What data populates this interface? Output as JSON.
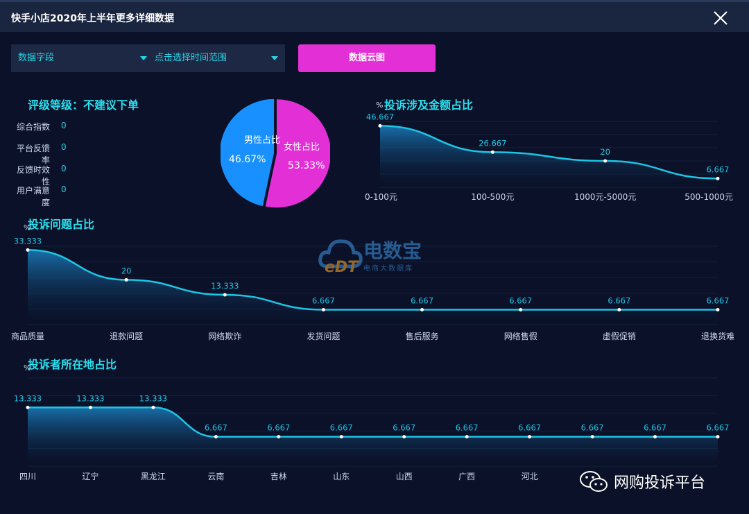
{
  "window": {
    "title": "快手小店2020年上半年更多详细数据",
    "close_icon": "close-icon"
  },
  "filters": {
    "field_select": "数据字段",
    "time_select": "点击选择时间范围",
    "cloud_button": "数据云图"
  },
  "rating": {
    "title": "评级等级：不建议下单",
    "items": [
      {
        "label": "综合指数",
        "value": "0"
      },
      {
        "label": "平台反馈率",
        "value": "0"
      },
      {
        "label": "反馈时效性",
        "value": "0"
      },
      {
        "label": "用户满意度",
        "value": "0"
      }
    ]
  },
  "gender_pie": {
    "type": "pie",
    "slices": [
      {
        "label": "男性占比",
        "value_label": "46.67%",
        "value": 46.67,
        "color": "#1890ff"
      },
      {
        "label": "女性占比",
        "value_label": "53.33%",
        "value": 53.33,
        "color": "#e32fd6"
      }
    ]
  },
  "watermark": {
    "logo_text": "电数宝",
    "logo_sub": "电商大数据库",
    "logo_mark": "eDT"
  },
  "footer": {
    "wechat_icon": "wechat-icon",
    "wechat_text": "网购投诉平台"
  },
  "colors": {
    "line": "#1cc6e6",
    "title": "#29e0f0",
    "accent": "#e32fd6",
    "male": "#1890ff"
  },
  "chart_data": [
    {
      "id": "amount",
      "type": "area",
      "title": "投诉涉及金额占比",
      "unit": "%",
      "categories": [
        "0-100元",
        "100-500元",
        "1000元-5000元",
        "500-1000元"
      ],
      "values": [
        46.667,
        26.667,
        20,
        6.667
      ],
      "value_labels": [
        "46.667",
        "26.667",
        "20",
        "6.667"
      ],
      "ylim": [
        0,
        50
      ]
    },
    {
      "id": "issue",
      "type": "area",
      "title": "投诉问题占比",
      "unit": "%",
      "categories": [
        "商品质量",
        "退款问题",
        "网络欺诈",
        "发货问题",
        "售后服务",
        "网络售假",
        "虚假促销",
        "退换货难"
      ],
      "values": [
        33.333,
        20,
        13.333,
        6.667,
        6.667,
        6.667,
        6.667,
        6.667
      ],
      "value_labels": [
        "33.333",
        "20",
        "13.333",
        "6.667",
        "6.667",
        "6.667",
        "6.667",
        "6.667"
      ],
      "ylim": [
        0,
        35
      ]
    },
    {
      "id": "location",
      "type": "area",
      "title": "投诉者所在地占比",
      "unit": "%",
      "categories": [
        "四川",
        "辽宁",
        "黑龙江",
        "云南",
        "吉林",
        "山东",
        "山西",
        "广西",
        "河北",
        "",
        "",
        ""
      ],
      "values": [
        13.333,
        13.333,
        13.333,
        6.667,
        6.667,
        6.667,
        6.667,
        6.667,
        6.667,
        6.667,
        6.667,
        6.667
      ],
      "value_labels": [
        "13.333",
        "13.333",
        "13.333",
        "6.667",
        "6.667",
        "6.667",
        "6.667",
        "6.667",
        "6.667",
        "6.667",
        "6.667",
        "6.667"
      ],
      "ylim": [
        0,
        20
      ]
    }
  ]
}
